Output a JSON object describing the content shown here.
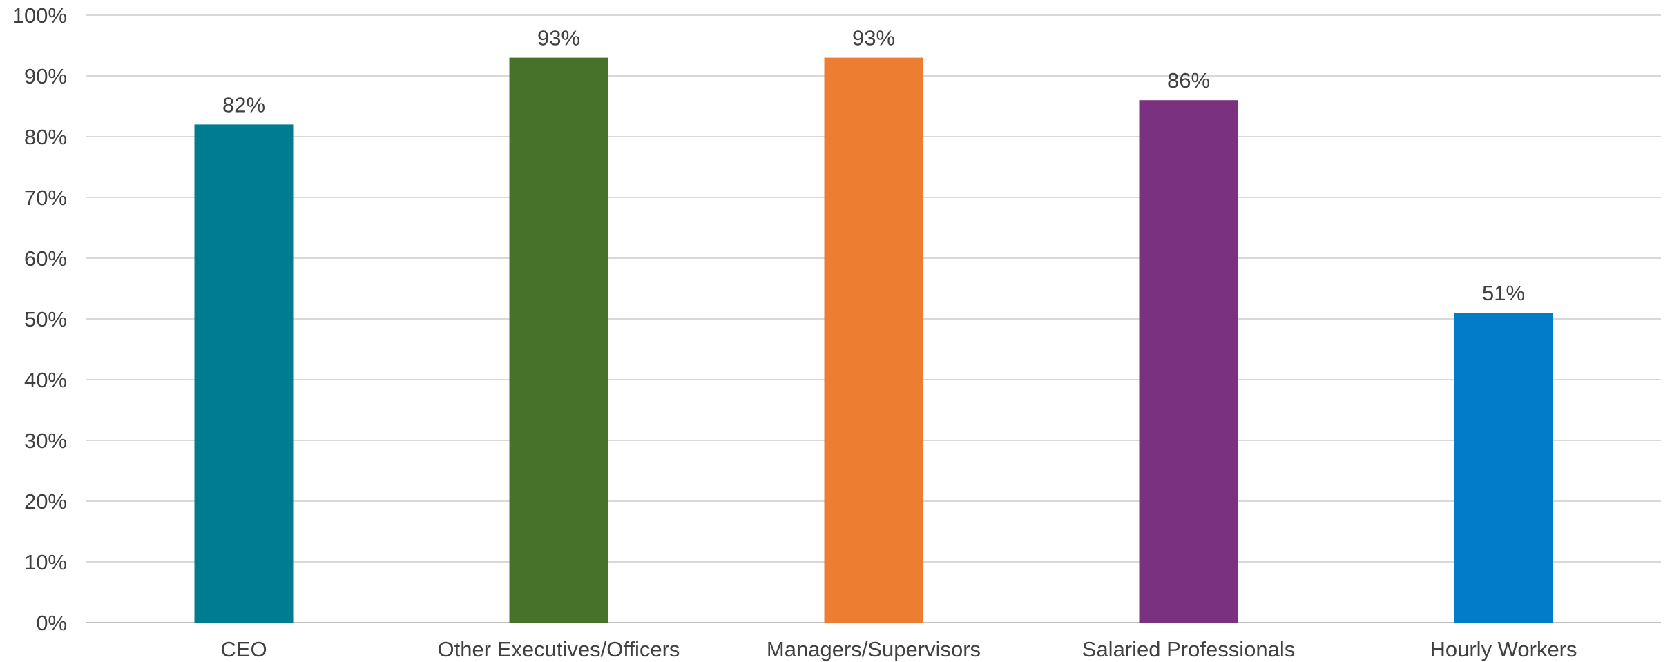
{
  "chart_data": {
    "type": "bar",
    "categories": [
      "CEO",
      "Other Executives/Officers",
      "Managers/Supervisors",
      "Salaried Professionals",
      "Hourly Workers"
    ],
    "values": [
      82,
      93,
      93,
      86,
      51
    ],
    "value_labels": [
      "82%",
      "93%",
      "93%",
      "86%",
      "51%"
    ],
    "bar_colors": [
      "#007C91",
      "#47722A",
      "#ED7D31",
      "#7A3180",
      "#007DC6"
    ],
    "y_ticks": [
      0,
      10,
      20,
      30,
      40,
      50,
      60,
      70,
      80,
      90,
      100
    ],
    "y_tick_labels": [
      "0%",
      "10%",
      "20%",
      "30%",
      "40%",
      "50%",
      "60%",
      "70%",
      "80%",
      "90%",
      "100%"
    ],
    "ylim": [
      0,
      100
    ],
    "grid": true,
    "legend": "none",
    "title": "",
    "xlabel": "",
    "ylabel": ""
  }
}
